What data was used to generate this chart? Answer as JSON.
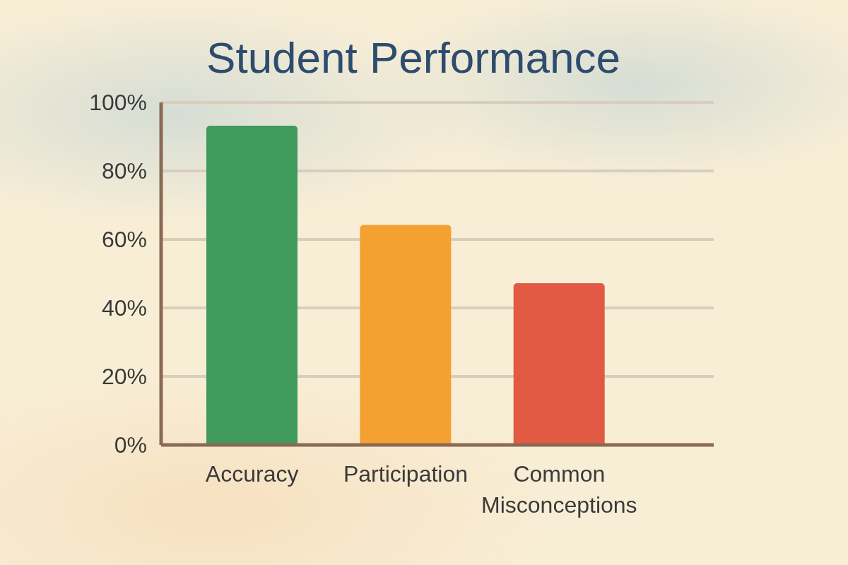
{
  "chart_data": {
    "type": "bar",
    "title": "Student Performance",
    "categories": [
      "Accuracy",
      "Participation",
      "Common Misconceptions"
    ],
    "values": [
      93,
      64,
      47
    ],
    "colors": [
      "#3f9a5c",
      "#f5a132",
      "#e25a43"
    ],
    "ylim": [
      0,
      100
    ],
    "yticks": [
      {
        "value": 0,
        "label": "0%"
      },
      {
        "value": 20,
        "label": "20%"
      },
      {
        "value": 40,
        "label": "40%"
      },
      {
        "value": 60,
        "label": "60%"
      },
      {
        "value": 80,
        "label": "80%"
      },
      {
        "value": 100,
        "label": "100%"
      }
    ],
    "grid": "y"
  }
}
